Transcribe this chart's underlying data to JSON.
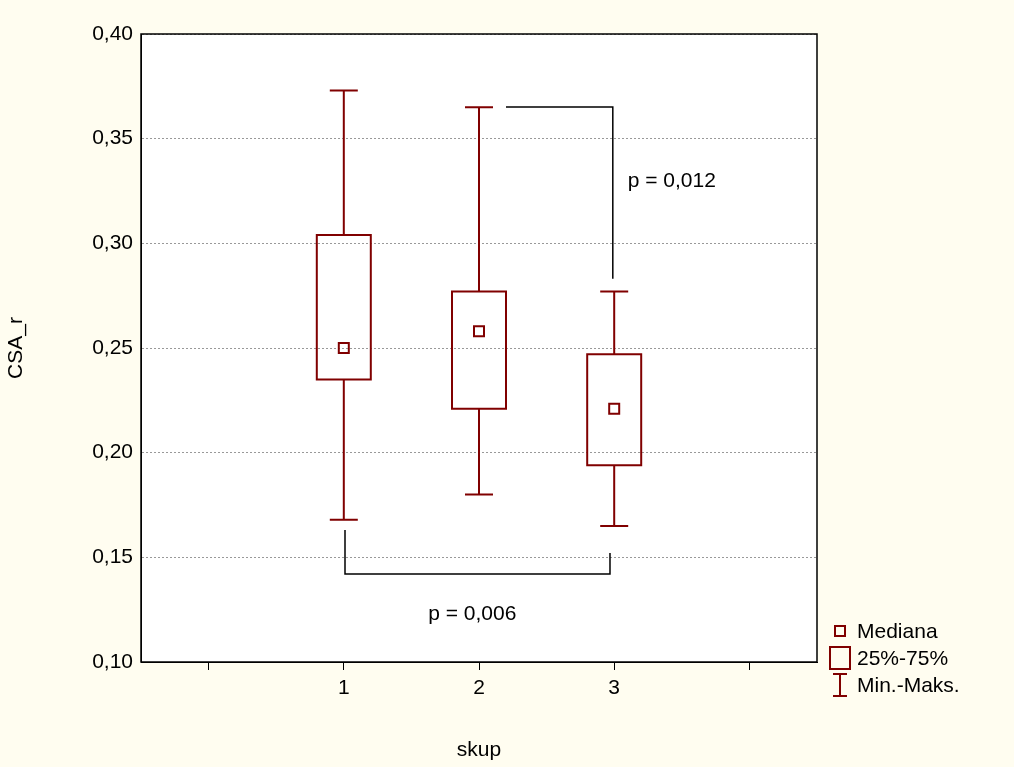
{
  "chart_data": {
    "type": "box",
    "xlabel": "skup",
    "ylabel": "CSA_r",
    "categories": [
      null,
      "1",
      "2",
      "3",
      null
    ],
    "color": "#800000",
    "boxes": [
      null,
      {
        "low": 0.168,
        "q1": 0.235,
        "median": 0.25,
        "q3": 0.304,
        "high": 0.373
      },
      {
        "low": 0.18,
        "q1": 0.221,
        "median": 0.258,
        "q3": 0.277,
        "high": 0.365
      },
      {
        "low": 0.165,
        "q1": 0.194,
        "median": 0.221,
        "q3": 0.247,
        "high": 0.277
      },
      null
    ],
    "ylim": [
      0.1,
      0.4
    ],
    "yticks": [
      {
        "value": 0.1,
        "label": "0,10"
      },
      {
        "value": 0.15,
        "label": "0,15"
      },
      {
        "value": 0.2,
        "label": "0,20"
      },
      {
        "value": 0.25,
        "label": "0,25"
      },
      {
        "value": 0.3,
        "label": "0,30"
      },
      {
        "value": 0.35,
        "label": "0,35"
      },
      {
        "value": 0.4,
        "label": "0,40"
      }
    ],
    "grid": "y",
    "annotations": [
      "p = 0,012",
      "p = 0,006",
      "Mediana",
      "25%-75%",
      "Min.-Maks."
    ]
  }
}
